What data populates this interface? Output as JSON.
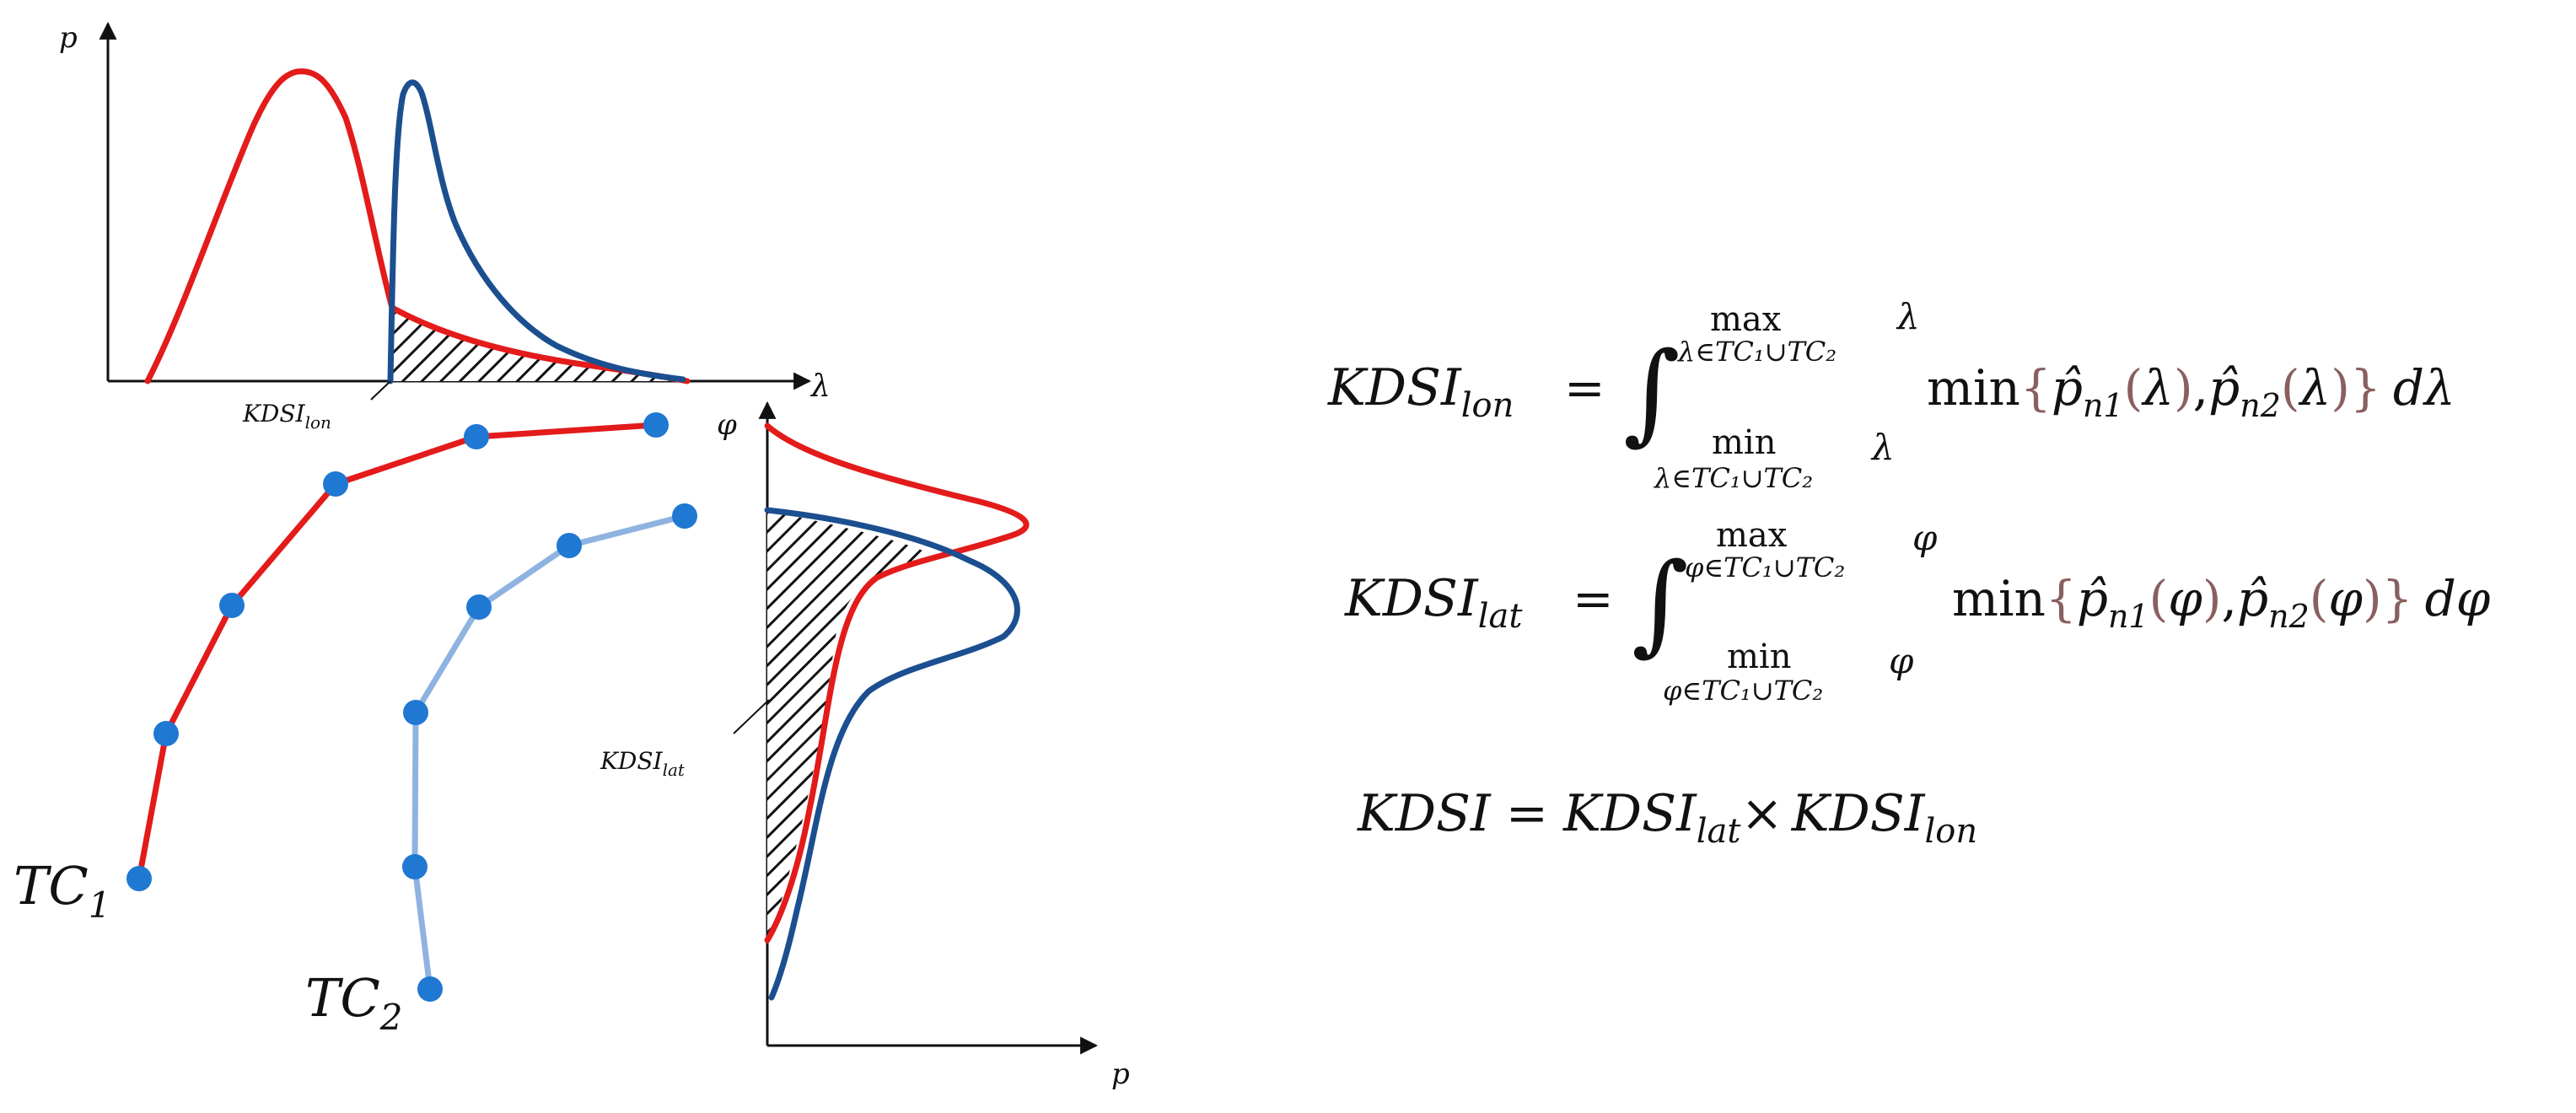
{
  "labels": {
    "top_y_axis": "p",
    "top_x_axis": "λ",
    "right_y_axis": "φ",
    "right_x_axis": "p",
    "kdsi_lon_marker": "KDSI",
    "kdsi_lon_marker_sub": "lon",
    "kdsi_lat_marker": "KDSI",
    "kdsi_lat_marker_sub": "lat",
    "tc1": "TC",
    "tc1_sub": "1",
    "tc2": "TC",
    "tc2_sub": "2"
  },
  "formulas": {
    "lon": {
      "lhs": "KDSI",
      "lhs_sub": "lon",
      "equals": "=",
      "integral": "∫",
      "upper_op": "max",
      "upper_cond": "λ∈TC₁∪TC₂",
      "upper_var": "λ",
      "lower_op": "min",
      "lower_cond": "λ∈TC₁∪TC₂",
      "lower_var": "λ",
      "min_op": "min",
      "term1_base": "p̂",
      "term1_sub": "n1",
      "term2_base": "p̂",
      "term2_sub": "n2",
      "arg": "λ",
      "differential": "dλ"
    },
    "lat": {
      "lhs": "KDSI",
      "lhs_sub": "lat",
      "equals": "=",
      "integral": "∫",
      "upper_op": "max",
      "upper_cond": "φ∈TC₁∪TC₂",
      "upper_var": "φ",
      "lower_op": "min",
      "lower_cond": "φ∈TC₁∪TC₂",
      "lower_var": "φ",
      "min_op": "min",
      "term1_base": "p̂",
      "term1_sub": "n1",
      "term2_base": "p̂",
      "term2_sub": "n2",
      "arg": "φ",
      "differential": "dφ"
    },
    "product": {
      "lhs": "KDSI",
      "equals": "=",
      "a": "KDSI",
      "a_sub": "lat",
      "times": "×",
      "b": "KDSI",
      "b_sub": "lon"
    }
  },
  "colors": {
    "tc1_curve": "#e31b1b",
    "tc2_curve": "#1b4f8f",
    "tc2_track": "#8fb3e0",
    "track_point": "#1f78d1",
    "formula_accent": "#8a5f5f",
    "axis": "#111111"
  }
}
